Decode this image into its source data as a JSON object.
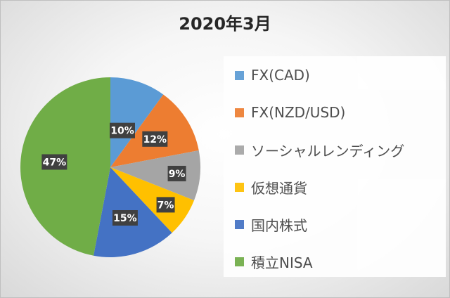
{
  "chart_data": {
    "type": "pie",
    "title": "2020年3月",
    "categories": [
      "FX(CAD)",
      "FX(NZD/USD)",
      "ソーシャルレンディング",
      "仮想通貨",
      "国内株式",
      "積立NISA"
    ],
    "values": [
      10,
      12,
      9,
      7,
      15,
      47
    ],
    "data_labels": [
      "10%",
      "12%",
      "9%",
      "7%",
      "15%",
      "47%"
    ],
    "colors": [
      "#5B9BD5",
      "#ED7D31",
      "#A5A5A5",
      "#FFC000",
      "#4472C4",
      "#70AD47"
    ],
    "legend": "right",
    "start_angle_deg": 0,
    "direction": "clockwise"
  }
}
